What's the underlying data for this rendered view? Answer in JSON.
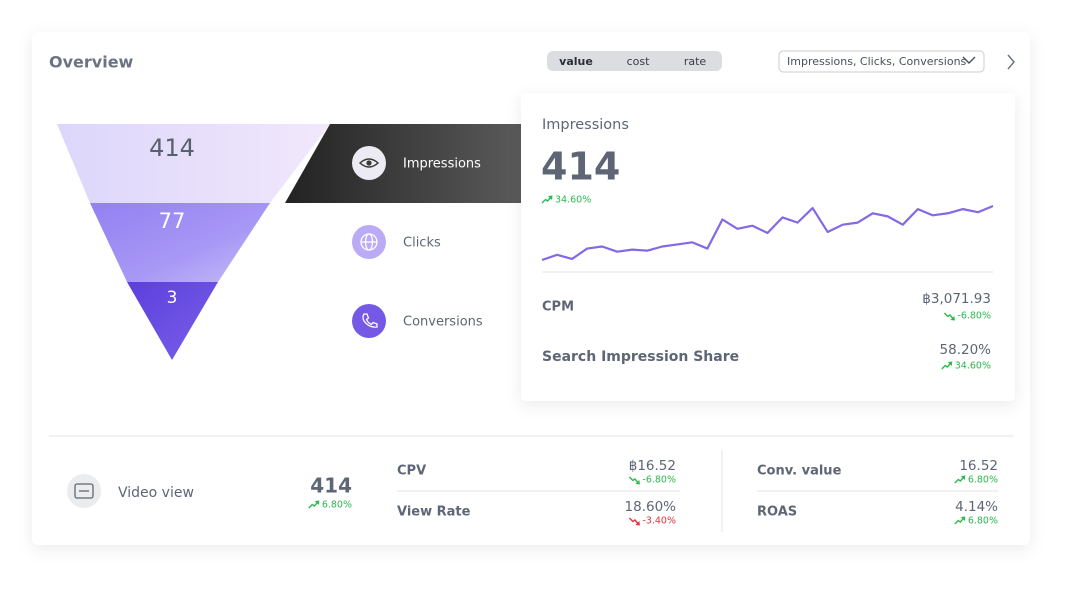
{
  "header": {
    "title": "Overview",
    "toggle": [
      "value",
      "cost",
      "rate"
    ],
    "dropdown": "Impressions, Clicks, Conversions"
  },
  "funnel": {
    "stages": [
      {
        "value": 414,
        "label": "Impressions"
      },
      {
        "value": 77,
        "label": "Clicks"
      },
      {
        "value": 3,
        "label": "Conversions"
      }
    ]
  },
  "panel": {
    "title": "Impressions",
    "value": 414,
    "delta": {
      "text": "34.60%",
      "trend": "up",
      "color": "#2db84d"
    },
    "sparkline": {
      "color": "#8468e6",
      "values": [
        12,
        17,
        13,
        23,
        25,
        20,
        22,
        21,
        25,
        27,
        29,
        23,
        51,
        42,
        45,
        38,
        53,
        48,
        62,
        39,
        46,
        48,
        57,
        54,
        46,
        61,
        55,
        57,
        61,
        58,
        64
      ]
    },
    "metrics": [
      {
        "label": "CPM",
        "value": "฿3,071.93",
        "delta": {
          "text": "-6.80%",
          "trend": "down",
          "color": "#2db84d"
        }
      },
      {
        "label": "Search Impression Share",
        "value": "58.20%",
        "delta": {
          "text": "34.60%",
          "trend": "up",
          "color": "#2db84d"
        }
      }
    ]
  },
  "footer": {
    "label": "Video view",
    "value": 414,
    "delta": {
      "text": "6.80%",
      "trend": "up",
      "color": "#2db84d"
    },
    "metrics": [
      [
        {
          "label": "CPV",
          "value": "฿16.52",
          "delta": {
            "text": "-6.80%",
            "trend": "down",
            "color": "#2db84d"
          }
        },
        {
          "label": "View Rate",
          "value": "18.60%",
          "delta": {
            "text": "-3.40%",
            "trend": "down",
            "color": "#e0343e"
          }
        }
      ],
      [
        {
          "label": "Conv. value",
          "value": "16.52",
          "delta": {
            "text": "6.80%",
            "trend": "up",
            "color": "#2db84d"
          }
        },
        {
          "label": "ROAS",
          "value": "4.14%",
          "delta": {
            "text": "6.80%",
            "trend": "up",
            "color": "#2db84d"
          }
        }
      ]
    ]
  }
}
